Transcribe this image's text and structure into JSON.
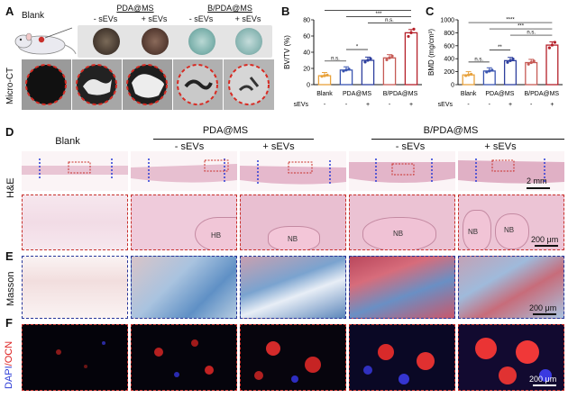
{
  "panels": {
    "A": "A",
    "B": "B",
    "C": "C",
    "D": "D",
    "E": "E",
    "F": "F"
  },
  "panel_a": {
    "blank_label": "Blank",
    "group1": "PDA@MS",
    "group2": "B/PDA@MS",
    "minus_sevs": "- sEVs",
    "plus_sevs": "+ sEVs",
    "row_label": "Micro-CT"
  },
  "panel_d": {
    "blank": "Blank",
    "group1": "PDA@MS",
    "group2": "B/PDA@MS",
    "minus_sevs": "- sEVs",
    "plus_sevs": "+ sEVs",
    "row_label": "H&E",
    "scale_low": "2 mm",
    "scale_high": "200 μm",
    "hb": "HB",
    "nb": "NB"
  },
  "panel_e": {
    "row_label": "Masson",
    "scale": "200 μm"
  },
  "panel_f": {
    "row_label_dapi": "DAPI",
    "row_label_ocn": "/OCN",
    "scale": "200 μm"
  },
  "chart_data": [
    {
      "type": "bar",
      "panel": "B",
      "ylabel": "BV/TV (%)",
      "ylim": [
        0,
        80
      ],
      "yticks": [
        0,
        20,
        40,
        60,
        80
      ],
      "categories": [
        "Blank",
        "PDA@MS -",
        "PDA@MS +",
        "B/PDA@MS -",
        "B/PDA@MS +"
      ],
      "group_labels": [
        "Blank",
        "PDA@MS",
        "B/PDA@MS"
      ],
      "sevs_row_label": "sEVs",
      "sevs_signs": [
        "-",
        "-",
        "+",
        "-",
        "+"
      ],
      "values": [
        11,
        18,
        30,
        33,
        64
      ],
      "colors": [
        "#e8a23c",
        "#3a55b0",
        "#2e3f9e",
        "#c65a55",
        "#b5212a"
      ],
      "significance": [
        "n.s.",
        "*",
        "n.s.",
        "***",
        "****"
      ]
    },
    {
      "type": "bar",
      "panel": "C",
      "ylabel": "BMD (mg/cm³)",
      "ylim": [
        0,
        1000
      ],
      "yticks": [
        0,
        200,
        400,
        600,
        800,
        1000
      ],
      "categories": [
        "Blank",
        "PDA@MS -",
        "PDA@MS +",
        "B/PDA@MS -",
        "B/PDA@MS +"
      ],
      "group_labels": [
        "Blank",
        "PDA@MS",
        "B/PDA@MS"
      ],
      "sevs_row_label": "sEVs",
      "sevs_signs": [
        "-",
        "-",
        "+",
        "-",
        "+"
      ],
      "values": [
        150,
        210,
        370,
        340,
        610
      ],
      "colors": [
        "#e8a23c",
        "#3a55b0",
        "#2e3f9e",
        "#c65a55",
        "#b5212a"
      ],
      "significance": [
        "n.s.",
        "**",
        "n.s.",
        "***",
        "****"
      ]
    }
  ]
}
